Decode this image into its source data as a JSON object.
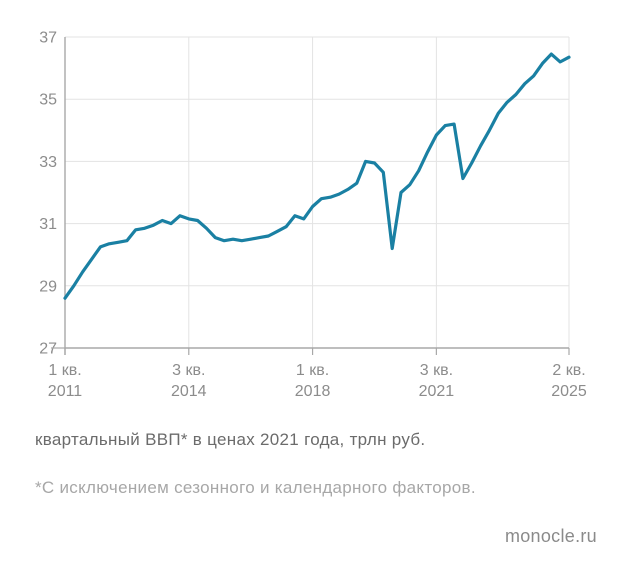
{
  "caption": "квартальный ВВП* в ценах 2021 года, трлн руб.",
  "footnote": "*С исключением сезонного и календарного факторов.",
  "source": "monocle.ru",
  "chart_data": {
    "type": "line",
    "title": "",
    "xlabel": "",
    "ylabel": "",
    "ylim": [
      27,
      37
    ],
    "grid": true,
    "legend": false,
    "y_ticks": [
      27,
      29,
      31,
      33,
      35,
      37
    ],
    "x_ticks": [
      {
        "q": 0,
        "line1": "1 кв.",
        "line2": "2011"
      },
      {
        "q": 14,
        "line1": "3 кв.",
        "line2": "2014"
      },
      {
        "q": 28,
        "line1": "1 кв.",
        "line2": "2018"
      },
      {
        "q": 42,
        "line1": "3 кв.",
        "line2": "2021"
      },
      {
        "q": 57,
        "line1": "2 кв.",
        "line2": "2025"
      }
    ],
    "categories": [
      "2011Q1",
      "2011Q2",
      "2011Q3",
      "2011Q4",
      "2012Q1",
      "2012Q2",
      "2012Q3",
      "2012Q4",
      "2013Q1",
      "2013Q2",
      "2013Q3",
      "2013Q4",
      "2014Q1",
      "2014Q2",
      "2014Q3",
      "2014Q4",
      "2015Q1",
      "2015Q2",
      "2015Q3",
      "2015Q4",
      "2016Q1",
      "2016Q2",
      "2016Q3",
      "2016Q4",
      "2017Q1",
      "2017Q2",
      "2017Q3",
      "2017Q4",
      "2018Q1",
      "2018Q2",
      "2018Q3",
      "2018Q4",
      "2019Q1",
      "2019Q2",
      "2019Q3",
      "2019Q4",
      "2020Q1",
      "2020Q2",
      "2020Q3",
      "2020Q4",
      "2021Q1",
      "2021Q2",
      "2021Q3",
      "2021Q4",
      "2022Q1",
      "2022Q2",
      "2022Q3",
      "2022Q4",
      "2023Q1",
      "2023Q2",
      "2023Q3",
      "2023Q4",
      "2024Q1",
      "2024Q2",
      "2024Q3",
      "2024Q4",
      "2025Q1",
      "2025Q2"
    ],
    "values": [
      28.6,
      29.0,
      29.45,
      29.85,
      30.25,
      30.35,
      30.4,
      30.45,
      30.8,
      30.85,
      30.95,
      31.1,
      31.0,
      31.25,
      31.15,
      31.1,
      30.85,
      30.55,
      30.45,
      30.5,
      30.45,
      30.5,
      30.55,
      30.6,
      30.75,
      30.9,
      31.25,
      31.15,
      31.55,
      31.8,
      31.85,
      31.95,
      32.1,
      32.3,
      33.0,
      32.95,
      32.65,
      30.2,
      32.0,
      32.25,
      32.7,
      33.3,
      33.85,
      34.15,
      34.2,
      32.45,
      32.95,
      33.5,
      34.0,
      34.55,
      34.9,
      35.15,
      35.5,
      35.75,
      36.15,
      36.45,
      36.2,
      36.35
    ],
    "colors": {
      "line": "#1a80a3",
      "grid": "#e3e3e3",
      "axis": "#a8a8a8",
      "tick_text": "#8c8c8c"
    }
  }
}
